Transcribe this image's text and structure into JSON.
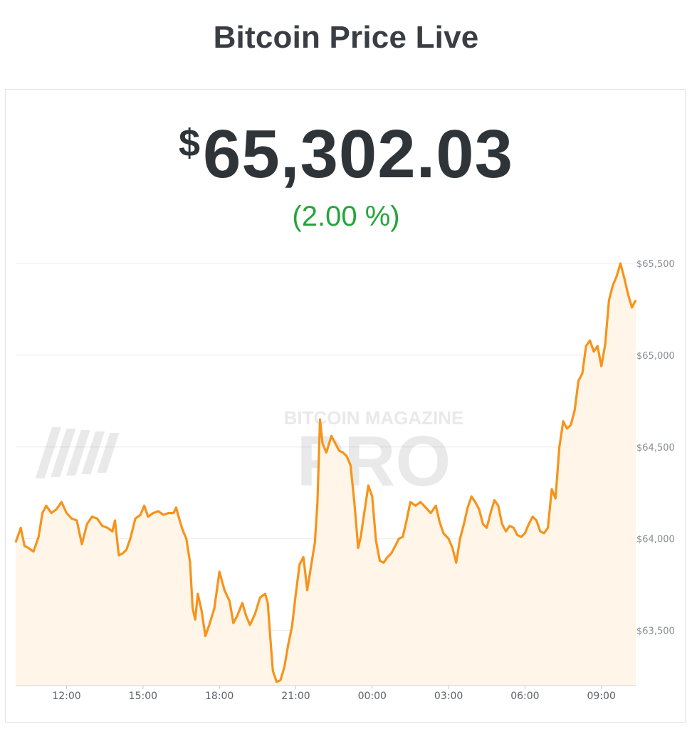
{
  "header": {
    "title": "Bitcoin Price Live"
  },
  "price": {
    "currency": "$",
    "value": "65,302.03",
    "change": "(2.00 %)"
  },
  "watermark": {
    "brand_line": "BITCOIN MAGAZINE",
    "logo_word": "PRO"
  },
  "colors": {
    "line": "#f7931a",
    "fill": "#fff5e8",
    "change_positive": "#24a63a",
    "text": "#2f3439"
  },
  "chart_data": {
    "type": "area",
    "title": "",
    "xlabel": "",
    "ylabel": "",
    "x_ticks": [
      "12:00",
      "15:00",
      "18:00",
      "21:00",
      "00:00",
      "03:00",
      "06:00",
      "09:00"
    ],
    "y_ticks": [
      {
        "value": 63500,
        "label": "$63,500"
      },
      {
        "value": 64000,
        "label": "$64,000"
      },
      {
        "value": 64500,
        "label": "$64,500"
      },
      {
        "value": 65000,
        "label": "$65,000"
      },
      {
        "value": 65500,
        "label": "$65,500"
      }
    ],
    "x_range_hours": [
      10.0,
      34.35
    ],
    "ylim": [
      63200,
      65500
    ],
    "grid": "horizontal",
    "series": [
      {
        "points": [
          [
            10.0,
            63980
          ],
          [
            10.2,
            64060
          ],
          [
            10.35,
            63960
          ],
          [
            10.5,
            63950
          ],
          [
            10.7,
            63930
          ],
          [
            10.9,
            64010
          ],
          [
            11.05,
            64140
          ],
          [
            11.2,
            64180
          ],
          [
            11.4,
            64140
          ],
          [
            11.6,
            64160
          ],
          [
            11.8,
            64200
          ],
          [
            12.0,
            64140
          ],
          [
            12.2,
            64110
          ],
          [
            12.4,
            64100
          ],
          [
            12.6,
            63970
          ],
          [
            12.8,
            64080
          ],
          [
            13.0,
            64120
          ],
          [
            13.2,
            64110
          ],
          [
            13.4,
            64070
          ],
          [
            13.6,
            64060
          ],
          [
            13.8,
            64040
          ],
          [
            13.9,
            64100
          ],
          [
            14.05,
            63910
          ],
          [
            14.2,
            63920
          ],
          [
            14.35,
            63940
          ],
          [
            14.5,
            64000
          ],
          [
            14.7,
            64110
          ],
          [
            14.9,
            64130
          ],
          [
            15.05,
            64180
          ],
          [
            15.2,
            64120
          ],
          [
            15.4,
            64140
          ],
          [
            15.6,
            64150
          ],
          [
            15.8,
            64130
          ],
          [
            16.0,
            64140
          ],
          [
            16.2,
            64140
          ],
          [
            16.3,
            64170
          ],
          [
            16.4,
            64120
          ],
          [
            16.55,
            64050
          ],
          [
            16.7,
            64000
          ],
          [
            16.85,
            63870
          ],
          [
            16.95,
            63620
          ],
          [
            17.05,
            63560
          ],
          [
            17.15,
            63700
          ],
          [
            17.3,
            63610
          ],
          [
            17.45,
            63470
          ],
          [
            17.6,
            63530
          ],
          [
            17.8,
            63620
          ],
          [
            18.0,
            63820
          ],
          [
            18.2,
            63720
          ],
          [
            18.4,
            63660
          ],
          [
            18.55,
            63540
          ],
          [
            18.7,
            63580
          ],
          [
            18.9,
            63650
          ],
          [
            19.05,
            63580
          ],
          [
            19.2,
            63530
          ],
          [
            19.4,
            63590
          ],
          [
            19.6,
            63680
          ],
          [
            19.8,
            63700
          ],
          [
            19.9,
            63650
          ],
          [
            20.0,
            63460
          ],
          [
            20.1,
            63280
          ],
          [
            20.25,
            63220
          ],
          [
            20.4,
            63230
          ],
          [
            20.55,
            63300
          ],
          [
            20.7,
            63420
          ],
          [
            20.85,
            63520
          ],
          [
            21.0,
            63700
          ],
          [
            21.15,
            63860
          ],
          [
            21.3,
            63900
          ],
          [
            21.45,
            63720
          ],
          [
            21.6,
            63850
          ],
          [
            21.75,
            63980
          ],
          [
            21.85,
            64200
          ],
          [
            21.95,
            64650
          ],
          [
            22.05,
            64520
          ],
          [
            22.2,
            64470
          ],
          [
            22.4,
            64560
          ],
          [
            22.55,
            64520
          ],
          [
            22.7,
            64480
          ],
          [
            22.85,
            64470
          ],
          [
            23.0,
            64450
          ],
          [
            23.15,
            64400
          ],
          [
            23.3,
            64200
          ],
          [
            23.45,
            63950
          ],
          [
            23.55,
            64010
          ],
          [
            23.7,
            64150
          ],
          [
            23.85,
            64290
          ],
          [
            24.0,
            64230
          ],
          [
            24.15,
            63990
          ],
          [
            24.3,
            63880
          ],
          [
            24.45,
            63870
          ],
          [
            24.6,
            63900
          ],
          [
            24.75,
            63920
          ],
          [
            24.9,
            63960
          ],
          [
            25.05,
            64000
          ],
          [
            25.2,
            64010
          ],
          [
            25.35,
            64100
          ],
          [
            25.5,
            64200
          ],
          [
            25.7,
            64180
          ],
          [
            25.9,
            64200
          ],
          [
            26.1,
            64170
          ],
          [
            26.3,
            64140
          ],
          [
            26.5,
            64180
          ],
          [
            26.65,
            64090
          ],
          [
            26.8,
            64030
          ],
          [
            27.0,
            64000
          ],
          [
            27.15,
            63950
          ],
          [
            27.3,
            63870
          ],
          [
            27.45,
            64000
          ],
          [
            27.6,
            64080
          ],
          [
            27.75,
            64170
          ],
          [
            27.9,
            64230
          ],
          [
            28.05,
            64200
          ],
          [
            28.2,
            64160
          ],
          [
            28.35,
            64080
          ],
          [
            28.5,
            64060
          ],
          [
            28.65,
            64140
          ],
          [
            28.8,
            64210
          ],
          [
            28.95,
            64180
          ],
          [
            29.1,
            64080
          ],
          [
            29.25,
            64040
          ],
          [
            29.4,
            64070
          ],
          [
            29.55,
            64060
          ],
          [
            29.7,
            64020
          ],
          [
            29.85,
            64010
          ],
          [
            30.0,
            64030
          ],
          [
            30.15,
            64080
          ],
          [
            30.3,
            64120
          ],
          [
            30.45,
            64100
          ],
          [
            30.6,
            64040
          ],
          [
            30.75,
            64030
          ],
          [
            30.9,
            64060
          ],
          [
            31.05,
            64270
          ],
          [
            31.2,
            64220
          ],
          [
            31.35,
            64500
          ],
          [
            31.5,
            64640
          ],
          [
            31.65,
            64600
          ],
          [
            31.8,
            64620
          ],
          [
            31.95,
            64700
          ],
          [
            32.1,
            64860
          ],
          [
            32.25,
            64900
          ],
          [
            32.4,
            65050
          ],
          [
            32.55,
            65080
          ],
          [
            32.7,
            65020
          ],
          [
            32.85,
            65050
          ],
          [
            33.0,
            64940
          ],
          [
            33.15,
            65060
          ],
          [
            33.3,
            65300
          ],
          [
            33.45,
            65380
          ],
          [
            33.6,
            65430
          ],
          [
            33.75,
            65500
          ],
          [
            33.9,
            65420
          ],
          [
            34.05,
            65330
          ],
          [
            34.2,
            65260
          ],
          [
            34.35,
            65300
          ]
        ]
      }
    ]
  }
}
